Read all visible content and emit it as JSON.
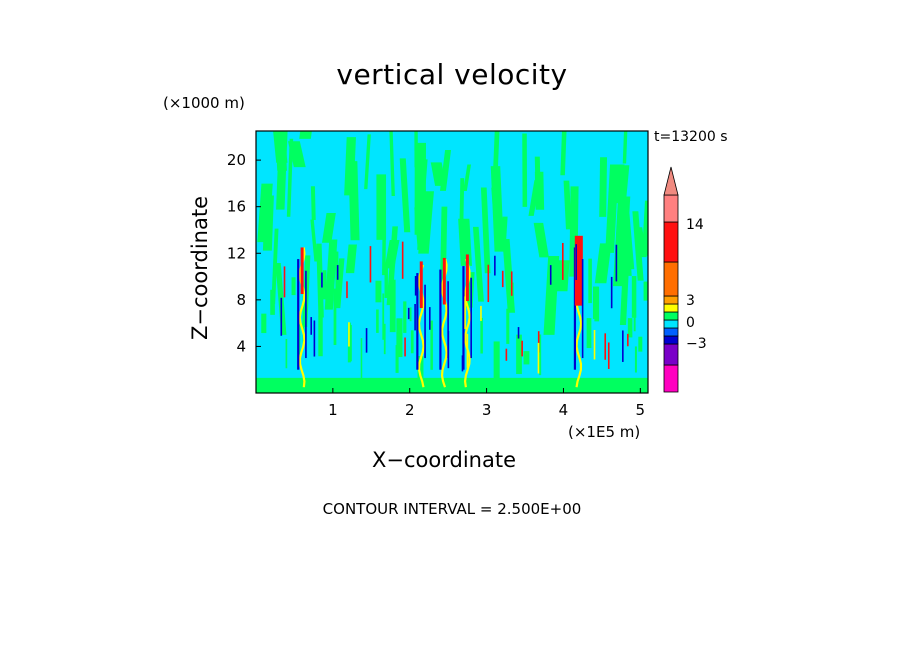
{
  "chart_data": {
    "type": "heatmap",
    "title": "vertical velocity",
    "xlabel": "X−coordinate",
    "ylabel": "Z−coordinate",
    "x_unit": "(×1E5 m)",
    "y_unit": "(×1000 m)",
    "time_label": "t=13200 s",
    "footer": "CONTOUR INTERVAL = 2.500E+00",
    "xlim": [
      0,
      5.1
    ],
    "ylim": [
      0,
      22.5
    ],
    "x_ticks": [
      1,
      2,
      3,
      4,
      5
    ],
    "y_ticks": [
      4,
      8,
      12,
      16,
      20
    ],
    "background_levels": [
      {
        "name": "0 to 2.5",
        "color": "#00ff60"
      },
      {
        "name": "-2.5 to 0",
        "color": "#00e5ff"
      }
    ],
    "updraft_columns_x": [
      0.6,
      2.15,
      2.45,
      2.75,
      4.2
    ],
    "colorbar": {
      "tick_labels": [
        "14",
        "3",
        "0",
        "−3"
      ],
      "segment_colors": [
        "#ff00c0",
        "#7a00c8",
        "#0000d0",
        "#0060ff",
        "#00e5ff",
        "#00ff60",
        "#ffff00",
        "#ffa000",
        "#ff6e00",
        "#ff1010",
        "#ff8080",
        "#f08a80"
      ]
    },
    "colors": {
      "field_cyan": "#00e5ff",
      "field_green": "#00ff60",
      "updraft_red": "#ff1010",
      "updraft_yellow": "#ffff00",
      "downdraft_blue": "#0000d0"
    }
  }
}
